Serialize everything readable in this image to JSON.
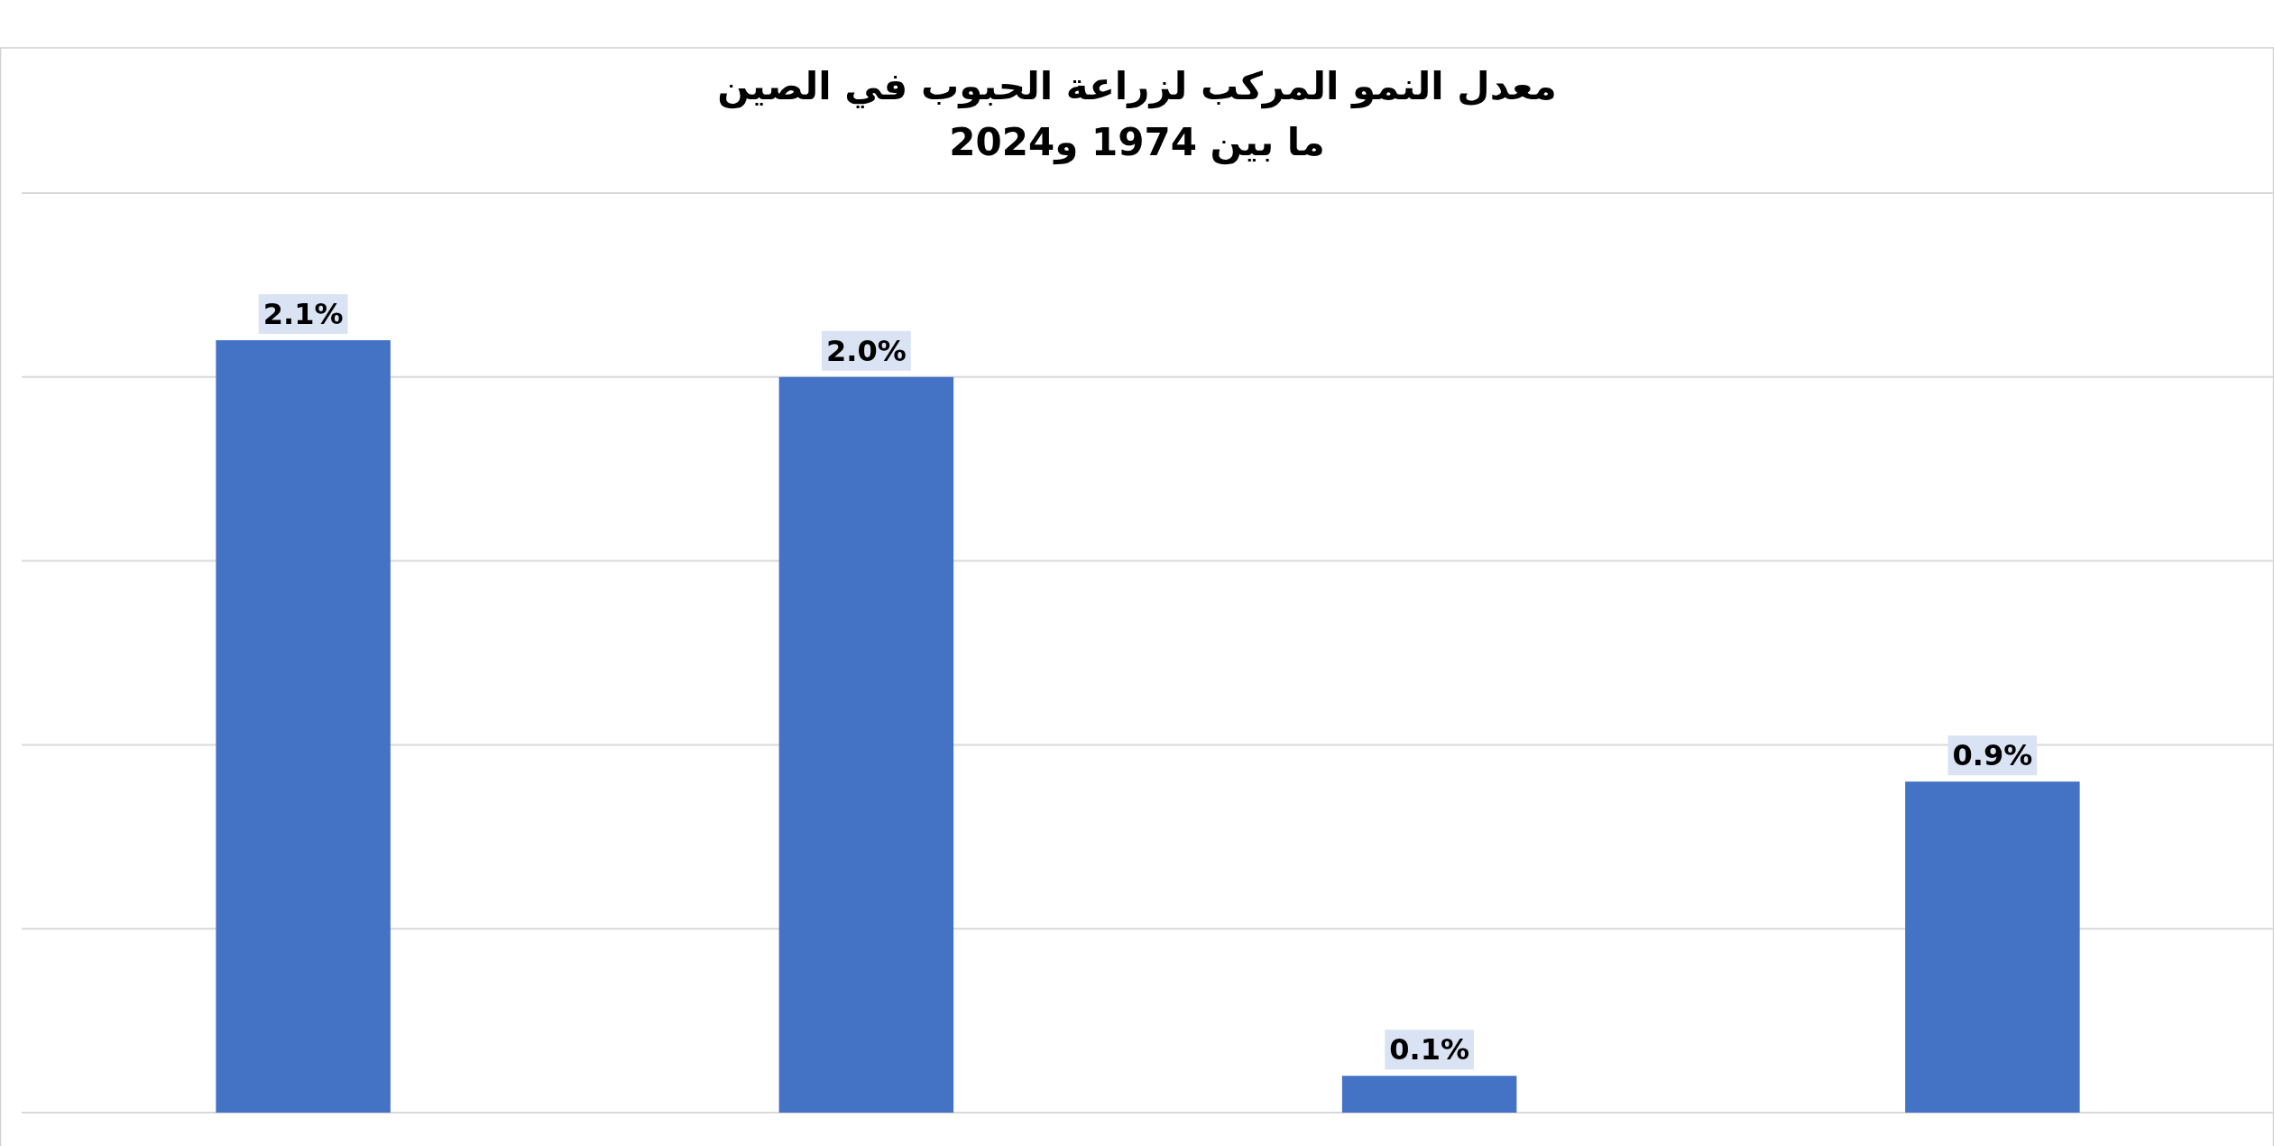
{
  "chart_data": {
    "type": "bar",
    "title": "معدل النمو المركب لزراعة الحبوب في الصين\nما بين 1974 و2024",
    "categories": [
      null,
      null,
      null,
      null
    ],
    "series": [
      {
        "color": "#4472c4",
        "values": [
          2.1,
          2.0,
          0.1,
          0.9
        ],
        "value_labels": [
          "2.1%",
          "2.0%",
          "0.1%",
          "0.9%"
        ]
      }
    ],
    "ylim": [
      0,
      2.5
    ],
    "yticks": [
      {
        "value": 0,
        "label": null
      },
      {
        "value": 0.5,
        "label": null
      },
      {
        "value": 1,
        "label": null
      },
      {
        "value": 1.5,
        "label": null
      },
      {
        "value": 2,
        "label": null
      },
      {
        "value": 2.5,
        "label": null
      }
    ],
    "grid": "y"
  }
}
